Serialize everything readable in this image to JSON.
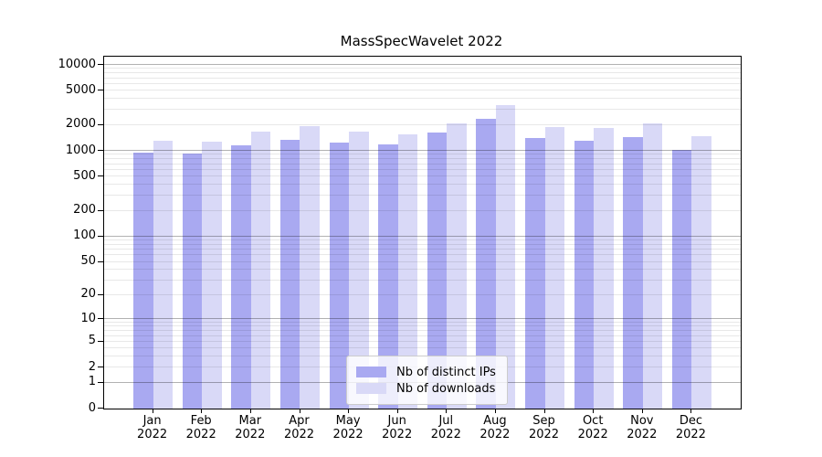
{
  "chart_data": {
    "type": "bar",
    "title": "MassSpecWavelet 2022",
    "categories": [
      "Jan",
      "Feb",
      "Mar",
      "Apr",
      "May",
      "Jun",
      "Jul",
      "Aug",
      "Sep",
      "Oct",
      "Nov",
      "Dec"
    ],
    "category_year": "2022",
    "series": [
      {
        "name": "Nb of distinct IPs",
        "color": "#a9a9f1",
        "values": [
          950,
          920,
          1160,
          1340,
          1250,
          1200,
          1620,
          2360,
          1410,
          1320,
          1440,
          1030
        ]
      },
      {
        "name": "Nb of downloads",
        "color": "#d9d9f7",
        "values": [
          1310,
          1280,
          1660,
          1950,
          1680,
          1550,
          2080,
          3400,
          1880,
          1830,
          2100,
          1470
        ]
      }
    ],
    "yscale": "log1p",
    "ylim": [
      0,
      10000
    ],
    "yticks": [
      10000,
      5000,
      2000,
      1000,
      500,
      200,
      100,
      50,
      20,
      10,
      5,
      2,
      1,
      0
    ],
    "grid": true,
    "grid_major_values": [
      1,
      10,
      100,
      1000,
      10000
    ],
    "legend_position": "inside-bottom-center"
  },
  "colors": {
    "background": "#ffffff",
    "axis": "#000000",
    "grid_minor": "#e8e8e8",
    "grid_major": "#b3b3b3",
    "legend_border": "#cccccc"
  }
}
